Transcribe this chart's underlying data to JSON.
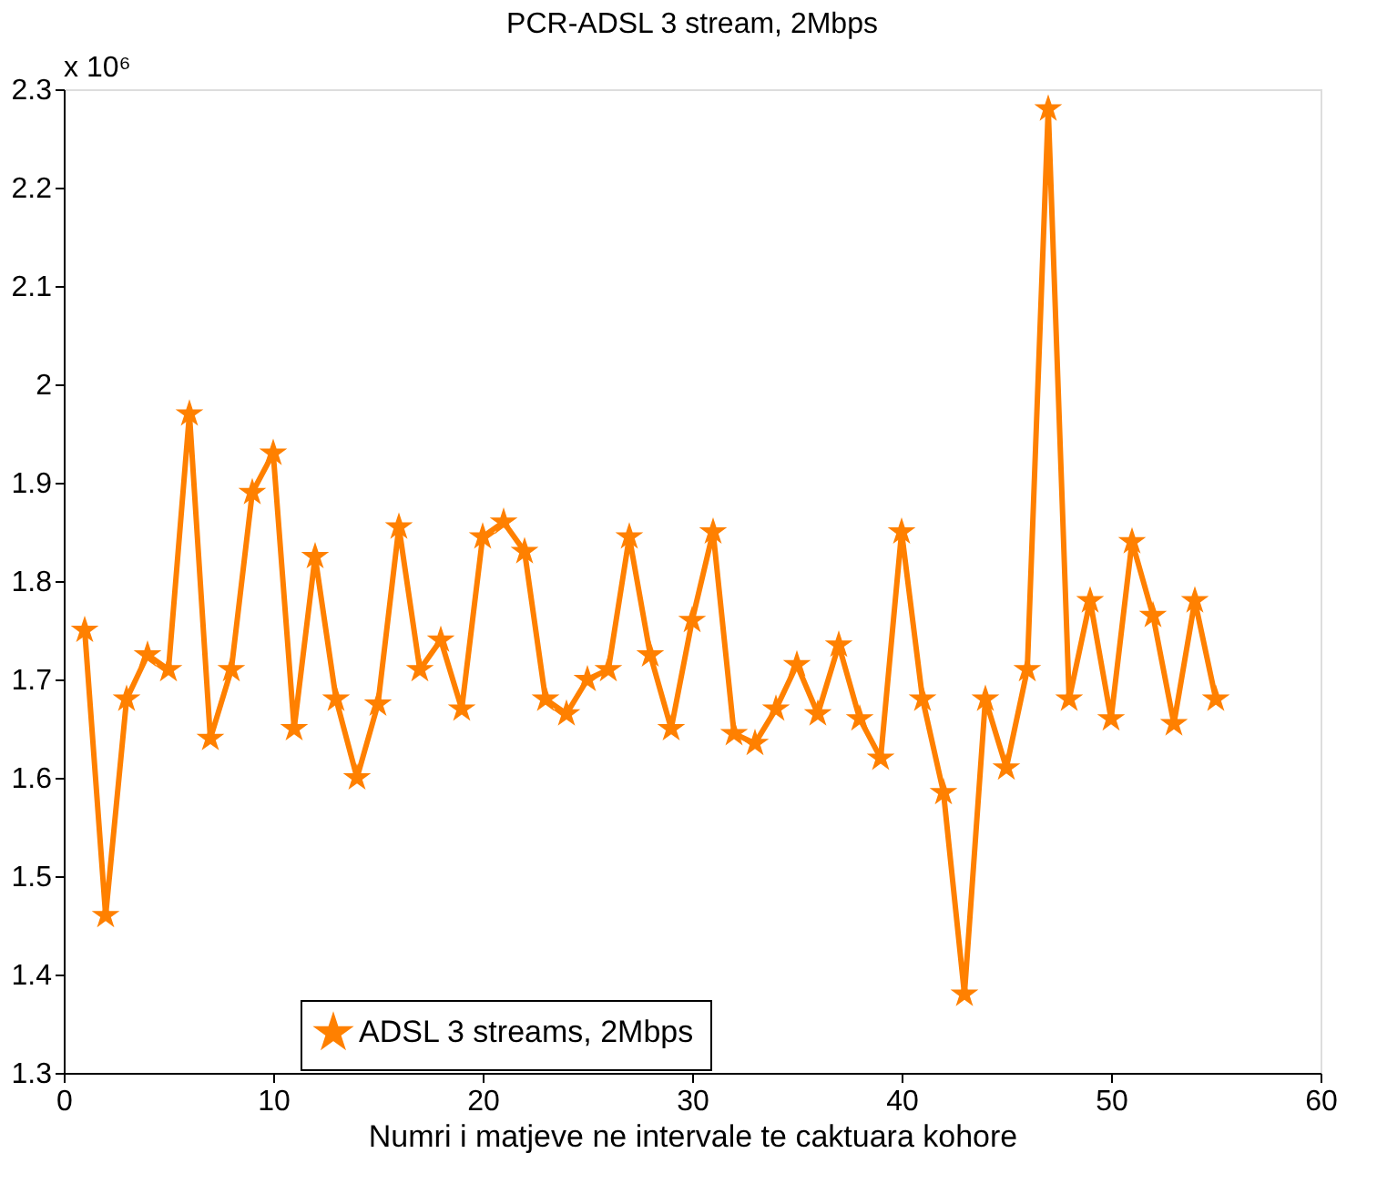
{
  "chart_data": {
    "type": "line",
    "title": "PCR-ADSL 3 stream, 2Mbps",
    "xlabel": "Numri i matjeve ne intervale te caktuara kohore",
    "annotations": [
      "x 10⁶"
    ],
    "x": [
      1,
      2,
      3,
      4,
      5,
      6,
      7,
      8,
      9,
      10,
      11,
      12,
      13,
      14,
      15,
      16,
      17,
      18,
      19,
      20,
      21,
      22,
      23,
      24,
      25,
      26,
      27,
      28,
      29,
      30,
      31,
      32,
      33,
      34,
      35,
      36,
      37,
      38,
      39,
      40,
      41,
      42,
      43,
      44,
      45,
      46,
      47,
      48,
      49,
      50,
      51,
      52,
      53,
      54,
      55
    ],
    "series": [
      {
        "name": "ADSL 3 streams, 2Mbps",
        "color": "#ff8000",
        "values": [
          1.75,
          1.46,
          1.68,
          1.725,
          1.71,
          1.97,
          1.64,
          1.71,
          1.89,
          1.93,
          1.65,
          1.825,
          1.68,
          1.6,
          1.675,
          1.855,
          1.71,
          1.74,
          1.67,
          1.845,
          1.86,
          1.83,
          1.68,
          1.665,
          1.7,
          1.71,
          1.845,
          1.725,
          1.65,
          1.76,
          1.85,
          1.645,
          1.635,
          1.67,
          1.715,
          1.665,
          1.735,
          1.66,
          1.62,
          1.85,
          1.68,
          1.585,
          1.38,
          1.68,
          1.61,
          1.71,
          2.28,
          1.68,
          1.78,
          1.66,
          1.84,
          1.765,
          1.655,
          1.78,
          1.68
        ]
      }
    ],
    "xlim": [
      0,
      60
    ],
    "xticks": [
      0,
      10,
      20,
      30,
      40,
      50,
      60
    ],
    "ylim": [
      1.3,
      2.3
    ],
    "yticks": [
      1.3,
      1.4,
      1.5,
      1.6,
      1.7,
      1.8,
      1.9,
      2,
      2.1,
      2.2,
      2.3
    ],
    "grid": false,
    "legend": "bottom",
    "marker": "star",
    "line_style": "solid"
  }
}
